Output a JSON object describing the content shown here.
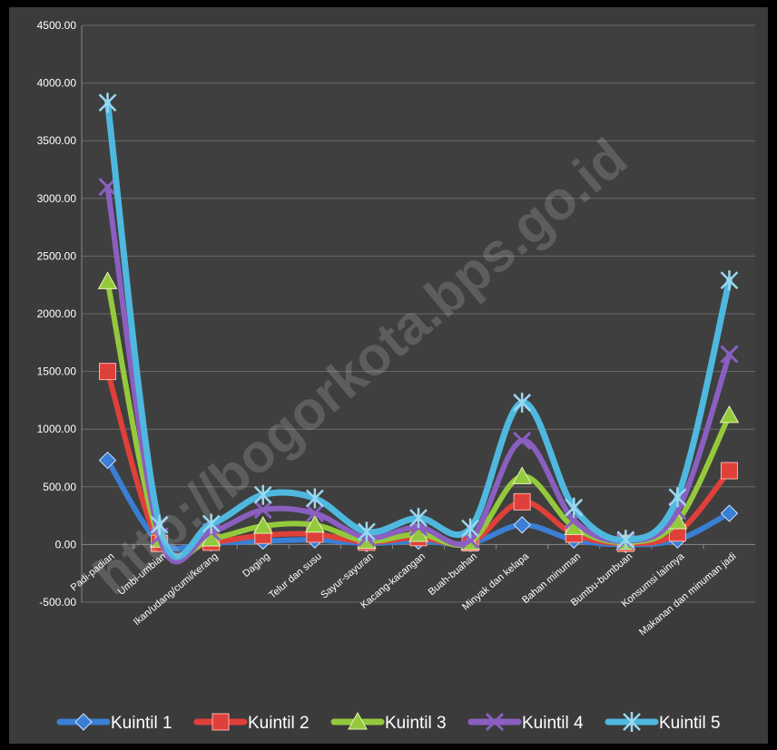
{
  "chart_data": {
    "type": "line",
    "smooth": true,
    "categories": [
      "Padi-padian",
      "Umbi-umbian",
      "Ikan/udang/cumi/kerang",
      "Daging",
      "Telur dan susu",
      "Sayur-sayuran",
      "Kacang-kacangan",
      "Buah-buahan",
      "Minyak dan kelapa",
      "Bahan minuman",
      "Bumbu-bumbuan",
      "Konsumsi lainnya",
      "Makanan dan minuman jadi"
    ],
    "series": [
      {
        "name": "Kuintil 1",
        "color": "#3a7fd5",
        "marker": "diamond",
        "values": [
          730,
          20,
          15,
          30,
          40,
          10,
          30,
          10,
          170,
          40,
          0,
          40,
          270
        ]
      },
      {
        "name": "Kuintil 2",
        "color": "#e0403a",
        "marker": "square",
        "values": [
          1500,
          10,
          20,
          80,
          90,
          20,
          60,
          15,
          370,
          90,
          10,
          100,
          640
        ]
      },
      {
        "name": "Kuintil 3",
        "color": "#95c93d",
        "marker": "triangle",
        "values": [
          2280,
          40,
          50,
          160,
          170,
          30,
          90,
          20,
          590,
          150,
          20,
          200,
          1120
        ]
      },
      {
        "name": "Kuintil 4",
        "color": "#8a5fc0",
        "marker": "x",
        "values": [
          3100,
          70,
          110,
          300,
          270,
          60,
          150,
          40,
          900,
          210,
          30,
          290,
          1650
        ]
      },
      {
        "name": "Kuintil 5",
        "color": "#4fb8df",
        "marker": "star",
        "values": [
          3830,
          170,
          180,
          430,
          400,
          110,
          230,
          140,
          1230,
          320,
          40,
          410,
          2290
        ]
      }
    ],
    "yTicks": [
      "-500.00",
      "0.00",
      "500.00",
      "1000.00",
      "1500.00",
      "2000.00",
      "2500.00",
      "3000.00",
      "3500.00",
      "4000.00",
      "4500.00"
    ],
    "ylim": [
      -500,
      4500
    ],
    "grid": true,
    "legend": "bottom",
    "watermark": "http://bogorkota.bps.go.id"
  }
}
